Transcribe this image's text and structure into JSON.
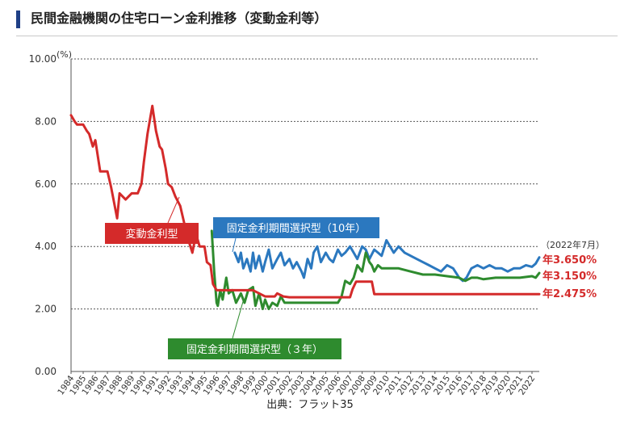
{
  "header": {
    "title": "民間金融機関の住宅ローン金利推移（変動金利等）"
  },
  "footer": {
    "source": "出典：フラット35"
  },
  "chart_data": {
    "type": "line",
    "title": "民間金融機関の住宅ローン金利推移（変動金利等）",
    "ylabel": "(%)",
    "ylim": [
      0,
      10
    ],
    "xlim": [
      1984,
      2022.6
    ],
    "y_ticks": [
      "0.00",
      "2.00",
      "4.00",
      "6.00",
      "8.00",
      "10.00"
    ],
    "x_ticks": [
      "1984",
      "1985",
      "1986",
      "1987",
      "1988",
      "1989",
      "1990",
      "1991",
      "1992",
      "1993",
      "1994",
      "1995",
      "1996",
      "1997",
      "1998",
      "1999",
      "2000",
      "2001",
      "2002",
      "2003",
      "2004",
      "2005",
      "2006",
      "2007",
      "2008",
      "2009",
      "2010",
      "2011",
      "2012",
      "2013",
      "2014",
      "2015",
      "2016",
      "2017",
      "2018",
      "2019",
      "2020",
      "2021",
      "2022"
    ],
    "grid": "horizontal-dotted",
    "end_date_label": "（2022年7月）",
    "series": [
      {
        "name": "変動金利型",
        "color": "#d42a2a",
        "end_label": "年2.475%",
        "x": [
          1984.0,
          1984.3,
          1984.5,
          1985.0,
          1985.3,
          1985.5,
          1985.8,
          1986.0,
          1986.2,
          1986.4,
          1987.0,
          1987.3,
          1987.5,
          1987.8,
          1988.0,
          1988.5,
          1989.0,
          1989.5,
          1989.8,
          1990.0,
          1990.3,
          1990.7,
          1991.0,
          1991.3,
          1991.5,
          1991.8,
          1992.0,
          1992.3,
          1992.6,
          1993.0,
          1993.3,
          1993.6,
          1994.0,
          1994.3,
          1994.6,
          1995.0,
          1995.2,
          1995.5,
          1995.7,
          1996.0,
          1996.5,
          1997.0,
          1998.0,
          1999.0,
          2000.0,
          2000.8,
          2001.0,
          2001.5,
          2002.0,
          2004.0,
          2006.0,
          2007.0,
          2007.2,
          2007.5,
          2008.0,
          2008.5,
          2008.8,
          2009.0,
          2010.0,
          2015.0,
          2020.0,
          2022.6
        ],
        "y": [
          8.2,
          8.0,
          7.9,
          7.9,
          7.7,
          7.6,
          7.2,
          7.4,
          6.9,
          6.4,
          6.4,
          5.9,
          5.5,
          4.9,
          5.7,
          5.5,
          5.7,
          5.7,
          6.0,
          6.7,
          7.6,
          8.5,
          7.7,
          7.2,
          7.1,
          6.5,
          6.0,
          5.9,
          5.6,
          5.3,
          4.8,
          4.3,
          3.8,
          4.4,
          4.0,
          4.0,
          3.5,
          3.4,
          2.8,
          2.6,
          2.6,
          2.6,
          2.6,
          2.6,
          2.4,
          2.4,
          2.5,
          2.4,
          2.375,
          2.375,
          2.375,
          2.375,
          2.625,
          2.875,
          2.875,
          2.875,
          2.875,
          2.475,
          2.475,
          2.475,
          2.475,
          2.475
        ]
      },
      {
        "name": "固定金利期間選択型（10年）",
        "color": "#2b78bf",
        "end_label": "年3.650%",
        "x": [
          1997.5,
          1997.8,
          1998.0,
          1998.2,
          1998.5,
          1998.8,
          1999.0,
          1999.2,
          1999.5,
          1999.8,
          2000.0,
          2000.3,
          2000.6,
          2001.0,
          2001.3,
          2001.6,
          2002.0,
          2002.3,
          2002.6,
          2003.0,
          2003.2,
          2003.5,
          2003.8,
          2004.0,
          2004.3,
          2004.6,
          2005.0,
          2005.3,
          2005.6,
          2006.0,
          2006.3,
          2006.6,
          2007.0,
          2007.3,
          2007.6,
          2008.0,
          2008.3,
          2008.6,
          2009.0,
          2009.3,
          2009.6,
          2010.0,
          2010.3,
          2010.6,
          2011.0,
          2011.5,
          2012.0,
          2012.5,
          2013.0,
          2013.5,
          2014.0,
          2014.5,
          2015.0,
          2015.5,
          2016.0,
          2016.3,
          2016.6,
          2017.0,
          2017.5,
          2018.0,
          2018.5,
          2019.0,
          2019.5,
          2020.0,
          2020.5,
          2021.0,
          2021.5,
          2022.0,
          2022.3,
          2022.6
        ],
        "y": [
          3.8,
          3.5,
          3.8,
          3.3,
          3.6,
          3.2,
          3.8,
          3.3,
          3.7,
          3.2,
          3.5,
          3.9,
          3.3,
          3.6,
          3.8,
          3.4,
          3.6,
          3.3,
          3.5,
          3.2,
          3.0,
          3.6,
          3.3,
          3.8,
          4.0,
          3.5,
          3.8,
          3.6,
          3.5,
          3.9,
          3.7,
          3.8,
          4.0,
          3.8,
          3.6,
          4.0,
          3.9,
          3.6,
          3.9,
          3.8,
          3.7,
          4.2,
          4.0,
          3.8,
          4.0,
          3.8,
          3.7,
          3.6,
          3.5,
          3.4,
          3.3,
          3.2,
          3.4,
          3.3,
          3.0,
          2.9,
          3.0,
          3.3,
          3.4,
          3.3,
          3.4,
          3.3,
          3.3,
          3.2,
          3.3,
          3.3,
          3.4,
          3.35,
          3.45,
          3.65
        ]
      },
      {
        "name": "固定金利期間選択型（３年）",
        "color": "#2e8b2e",
        "end_label": "年3.150%",
        "x": [
          1995.6,
          1995.8,
          1996.0,
          1996.1,
          1996.3,
          1996.5,
          1996.8,
          1997.0,
          1997.3,
          1997.6,
          1998.0,
          1998.3,
          1998.6,
          1999.0,
          1999.2,
          1999.5,
          1999.8,
          2000.0,
          2000.3,
          2000.6,
          2001.0,
          2001.3,
          2001.6,
          2002.0,
          2003.0,
          2004.0,
          2005.0,
          2006.0,
          2006.3,
          2006.6,
          2007.0,
          2007.3,
          2007.6,
          2008.0,
          2008.3,
          2008.6,
          2008.8,
          2009.0,
          2009.3,
          2009.6,
          2010.0,
          2011.0,
          2012.0,
          2013.0,
          2014.0,
          2015.0,
          2016.0,
          2016.5,
          2017.0,
          2017.5,
          2018.0,
          2019.0,
          2020.0,
          2021.0,
          2022.0,
          2022.3,
          2022.6
        ],
        "y": [
          4.5,
          3.2,
          2.2,
          2.1,
          2.6,
          2.3,
          3.0,
          2.5,
          2.6,
          2.2,
          2.5,
          2.2,
          2.6,
          2.7,
          2.1,
          2.5,
          2.0,
          2.3,
          2.0,
          2.2,
          2.1,
          2.4,
          2.2,
          2.2,
          2.2,
          2.2,
          2.2,
          2.2,
          2.4,
          2.9,
          2.8,
          3.0,
          3.4,
          3.2,
          3.8,
          3.5,
          3.4,
          3.2,
          3.4,
          3.3,
          3.3,
          3.3,
          3.2,
          3.1,
          3.1,
          3.05,
          3.0,
          2.9,
          3.0,
          3.0,
          2.95,
          3.0,
          3.0,
          3.0,
          3.05,
          3.0,
          3.15
        ]
      }
    ],
    "annotations": [
      {
        "text": "変動金利型",
        "series": 0
      },
      {
        "text": "固定金利期間選択型（10年）",
        "series": 1
      },
      {
        "text": "固定金利期間選択型（３年）",
        "series": 2
      }
    ]
  }
}
